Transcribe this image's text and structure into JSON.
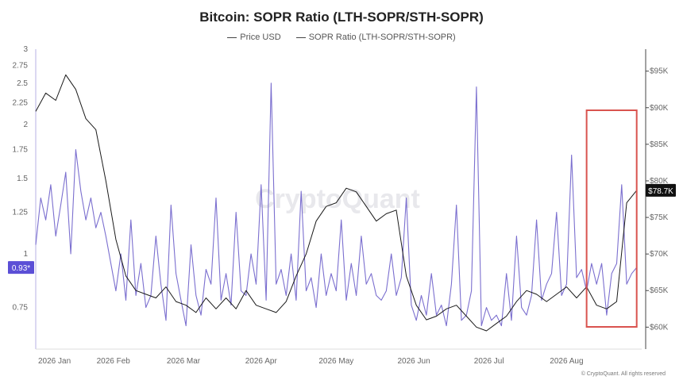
{
  "chart_data": {
    "type": "line",
    "title": "Bitcoin: SOPR Ratio (LTH-SOPR/STH-SOPR)",
    "legend": [
      "Price USD",
      "SOPR Ratio (LTH-SOPR/STH-SOPR)"
    ],
    "legend_position": "top-center",
    "watermark": "CryptoQuant",
    "credit": "© CryptoQuant. All rights reserved",
    "colors": {
      "price": "#1a1a1a",
      "sopr": "#7b6fcf",
      "highlight_box": "#d9534f"
    },
    "x_ticks": [
      "2026 Jan",
      "2026 Feb",
      "2026 Mar",
      "2026 Apr",
      "2026 May",
      "2026 Jun",
      "2026 Jul",
      "2026 Aug"
    ],
    "x_range": [
      "2026-01-01",
      "2026-08-31"
    ],
    "y_left": {
      "label": "",
      "scale": "log",
      "range": [
        0.6,
        3
      ],
      "ticks": [
        "3",
        "2.75",
        "2.5",
        "2.25",
        "2",
        "1.75",
        "1.5",
        "1.25",
        "1",
        "0.75"
      ],
      "tick_values": [
        3,
        2.75,
        2.5,
        2.25,
        2,
        1.75,
        1.5,
        1.25,
        1,
        0.75
      ]
    },
    "y_right": {
      "label": "",
      "range": [
        57000,
        98000
      ],
      "ticks": [
        "$95K",
        "$90K",
        "$85K",
        "$80K",
        "$75K",
        "$70K",
        "$65K",
        "$60K"
      ],
      "tick_values": [
        95000,
        90000,
        85000,
        80000,
        75000,
        70000,
        65000,
        60000
      ]
    },
    "last_values": {
      "sopr_label": "0.93*",
      "price_label": "$78.7K"
    },
    "grid": false,
    "highlight_box": {
      "from": "2026-08-09",
      "to": "2026-08-29"
    },
    "series": [
      {
        "name": "Price USD",
        "axis": "right",
        "x": [
          "2026-01-01",
          "2026-01-05",
          "2026-01-09",
          "2026-01-13",
          "2026-01-17",
          "2026-01-21",
          "2026-01-25",
          "2026-01-29",
          "2026-02-02",
          "2026-02-06",
          "2026-02-10",
          "2026-02-14",
          "2026-02-18",
          "2026-02-22",
          "2026-02-26",
          "2026-03-02",
          "2026-03-06",
          "2026-03-10",
          "2026-03-14",
          "2026-03-18",
          "2026-03-22",
          "2026-03-26",
          "2026-03-30",
          "2026-04-03",
          "2026-04-07",
          "2026-04-11",
          "2026-04-15",
          "2026-04-19",
          "2026-04-23",
          "2026-04-27",
          "2026-05-01",
          "2026-05-05",
          "2026-05-09",
          "2026-05-13",
          "2026-05-17",
          "2026-05-21",
          "2026-05-25",
          "2026-05-29",
          "2026-06-02",
          "2026-06-06",
          "2026-06-10",
          "2026-06-14",
          "2026-06-18",
          "2026-06-22",
          "2026-06-26",
          "2026-06-30",
          "2026-07-04",
          "2026-07-08",
          "2026-07-12",
          "2026-07-16",
          "2026-07-20",
          "2026-07-24",
          "2026-07-28",
          "2026-08-01",
          "2026-08-05",
          "2026-08-09",
          "2026-08-13",
          "2026-08-17",
          "2026-08-21",
          "2026-08-25",
          "2026-08-29"
        ],
        "values": [
          89500,
          92000,
          91000,
          94500,
          92500,
          88500,
          87000,
          80000,
          72000,
          67000,
          65000,
          64500,
          64000,
          65500,
          63500,
          63000,
          62000,
          64000,
          62500,
          64000,
          62500,
          65000,
          63000,
          62500,
          62000,
          63500,
          67000,
          70000,
          74500,
          76500,
          77000,
          79000,
          78500,
          76500,
          74500,
          75500,
          76000,
          67000,
          63000,
          61000,
          61500,
          62500,
          63000,
          61500,
          60000,
          59500,
          60500,
          61500,
          63500,
          65000,
          64500,
          63500,
          64500,
          65500,
          64000,
          65500,
          63000,
          62500,
          63500,
          77000,
          78700
        ]
      },
      {
        "name": "SOPR Ratio (LTH-SOPR/STH-SOPR)",
        "axis": "left",
        "x": [
          "2026-01-01",
          "2026-01-03",
          "2026-01-05",
          "2026-01-07",
          "2026-01-09",
          "2026-01-11",
          "2026-01-13",
          "2026-01-15",
          "2026-01-17",
          "2026-01-19",
          "2026-01-21",
          "2026-01-23",
          "2026-01-25",
          "2026-01-27",
          "2026-01-29",
          "2026-01-31",
          "2026-02-02",
          "2026-02-04",
          "2026-02-06",
          "2026-02-08",
          "2026-02-10",
          "2026-02-12",
          "2026-02-14",
          "2026-02-16",
          "2026-02-18",
          "2026-02-20",
          "2026-02-22",
          "2026-02-24",
          "2026-02-26",
          "2026-02-28",
          "2026-03-02",
          "2026-03-04",
          "2026-03-06",
          "2026-03-08",
          "2026-03-10",
          "2026-03-12",
          "2026-03-14",
          "2026-03-16",
          "2026-03-18",
          "2026-03-20",
          "2026-03-22",
          "2026-03-24",
          "2026-03-26",
          "2026-03-28",
          "2026-03-30",
          "2026-04-01",
          "2026-04-03",
          "2026-04-05",
          "2026-04-07",
          "2026-04-09",
          "2026-04-11",
          "2026-04-13",
          "2026-04-15",
          "2026-04-17",
          "2026-04-19",
          "2026-04-21",
          "2026-04-23",
          "2026-04-25",
          "2026-04-27",
          "2026-04-29",
          "2026-05-01",
          "2026-05-03",
          "2026-05-05",
          "2026-05-07",
          "2026-05-09",
          "2026-05-11",
          "2026-05-13",
          "2026-05-15",
          "2026-05-17",
          "2026-05-19",
          "2026-05-21",
          "2026-05-23",
          "2026-05-25",
          "2026-05-27",
          "2026-05-29",
          "2026-05-31",
          "2026-06-02",
          "2026-06-04",
          "2026-06-06",
          "2026-06-08",
          "2026-06-10",
          "2026-06-12",
          "2026-06-14",
          "2026-06-16",
          "2026-06-18",
          "2026-06-20",
          "2026-06-22",
          "2026-06-24",
          "2026-06-26",
          "2026-06-28",
          "2026-06-30",
          "2026-07-02",
          "2026-07-04",
          "2026-07-06",
          "2026-07-08",
          "2026-07-10",
          "2026-07-12",
          "2026-07-14",
          "2026-07-16",
          "2026-07-18",
          "2026-07-20",
          "2026-07-22",
          "2026-07-24",
          "2026-07-26",
          "2026-07-28",
          "2026-07-30",
          "2026-08-01",
          "2026-08-03",
          "2026-08-05",
          "2026-08-07",
          "2026-08-09",
          "2026-08-11",
          "2026-08-13",
          "2026-08-15",
          "2026-08-17",
          "2026-08-19",
          "2026-08-21",
          "2026-08-23",
          "2026-08-25",
          "2026-08-27",
          "2026-08-29"
        ],
        "values": [
          1.05,
          1.35,
          1.2,
          1.45,
          1.1,
          1.3,
          1.55,
          1.0,
          1.75,
          1.4,
          1.2,
          1.35,
          1.15,
          1.25,
          1.1,
          0.95,
          0.82,
          1.0,
          0.78,
          1.2,
          0.8,
          0.95,
          0.75,
          0.8,
          1.1,
          0.85,
          0.7,
          1.3,
          0.9,
          0.78,
          0.68,
          1.05,
          0.8,
          0.72,
          0.92,
          0.85,
          1.35,
          0.78,
          0.9,
          0.76,
          1.25,
          0.82,
          0.8,
          1.0,
          0.85,
          1.45,
          0.78,
          2.5,
          0.85,
          0.92,
          0.8,
          1.0,
          0.78,
          1.4,
          0.82,
          0.88,
          0.75,
          1.0,
          0.8,
          0.9,
          0.82,
          1.2,
          0.78,
          0.95,
          0.8,
          1.1,
          0.85,
          0.9,
          0.8,
          0.78,
          0.82,
          1.0,
          0.8,
          0.88,
          1.35,
          0.76,
          0.7,
          0.8,
          0.72,
          0.9,
          0.72,
          0.76,
          0.68,
          0.85,
          1.3,
          0.7,
          0.72,
          0.82,
          2.45,
          0.68,
          0.75,
          0.7,
          0.72,
          0.68,
          0.9,
          0.7,
          1.1,
          0.75,
          0.72,
          0.8,
          1.2,
          0.78,
          0.85,
          0.9,
          1.25,
          0.8,
          0.85,
          1.7,
          0.88,
          0.92,
          0.82,
          0.95,
          0.85,
          0.95,
          0.72,
          0.9,
          0.95,
          1.45,
          0.85,
          0.9,
          0.93
        ]
      }
    ]
  }
}
